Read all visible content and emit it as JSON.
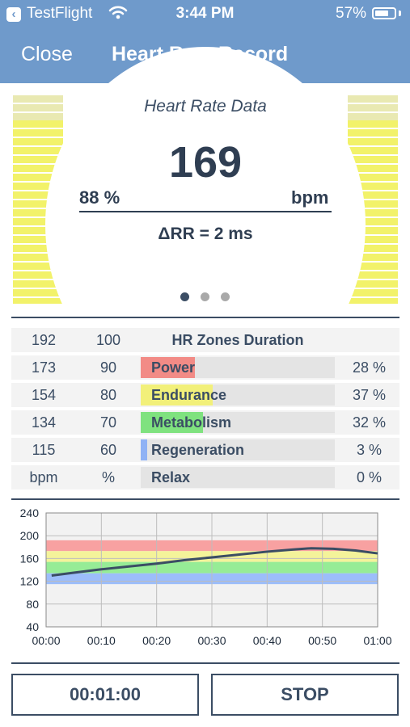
{
  "status_bar": {
    "back_app": "TestFlight",
    "time": "3:44 PM",
    "battery_pct": "57%"
  },
  "nav": {
    "close": "Close",
    "title": "Heart Rate Record"
  },
  "gauge": {
    "title": "Heart Rate Data",
    "value": "169",
    "percent": "88 %",
    "unit": "bpm",
    "rr": "ΔRR = 2 ms",
    "level_fraction": 0.88,
    "pages": 3,
    "active_page": 1,
    "colors": {
      "empty": "#e9e9b2",
      "filled": "#f2f26a"
    }
  },
  "zones": {
    "header": {
      "bpm": "192",
      "pct": "100",
      "title": "HR Zones Duration"
    },
    "rows": [
      {
        "bpm": "173",
        "pct": "90",
        "name": "Power",
        "value": "28 %",
        "fraction": 0.28,
        "color": "#f28b86"
      },
      {
        "bpm": "154",
        "pct": "80",
        "name": "Endurance",
        "value": "37 %",
        "fraction": 0.37,
        "color": "#f2f07a"
      },
      {
        "bpm": "134",
        "pct": "70",
        "name": "Metabolism",
        "value": "32 %",
        "fraction": 0.32,
        "color": "#7fe27f"
      },
      {
        "bpm": "115",
        "pct": "60",
        "name": "Regeneration",
        "value": "3 %",
        "fraction": 0.03,
        "color": "#8fb2f5"
      }
    ],
    "footer": {
      "bpm": "bpm",
      "pct": "%",
      "name": "Relax",
      "value": "0 %"
    }
  },
  "chart_data": {
    "type": "line",
    "y_ticks": [
      "240",
      "200",
      "160",
      "120",
      "80",
      "40"
    ],
    "x_ticks": [
      "00:00",
      "00:10",
      "00:20",
      "00:30",
      "00:40",
      "00:50",
      "01:00"
    ],
    "ylim": [
      40,
      240
    ],
    "xlim_minutes": [
      0,
      60
    ],
    "grid": true,
    "bands": [
      {
        "from": 173,
        "to": 192,
        "color": "#f8a1a1"
      },
      {
        "from": 154,
        "to": 173,
        "color": "#f4f39a"
      },
      {
        "from": 134,
        "to": 154,
        "color": "#96ec96"
      },
      {
        "from": 115,
        "to": 134,
        "color": "#9cbdfa"
      }
    ],
    "series": [
      {
        "color": "#3b4d64",
        "x": [
          1,
          5,
          10,
          15,
          20,
          25,
          30,
          35,
          40,
          45,
          48,
          52,
          56,
          60
        ],
        "y": [
          130,
          135,
          141,
          146,
          151,
          157,
          162,
          167,
          172,
          176,
          178,
          177,
          174,
          169
        ]
      }
    ]
  },
  "controls": {
    "timer": "00:01:00",
    "stop": "STOP"
  }
}
